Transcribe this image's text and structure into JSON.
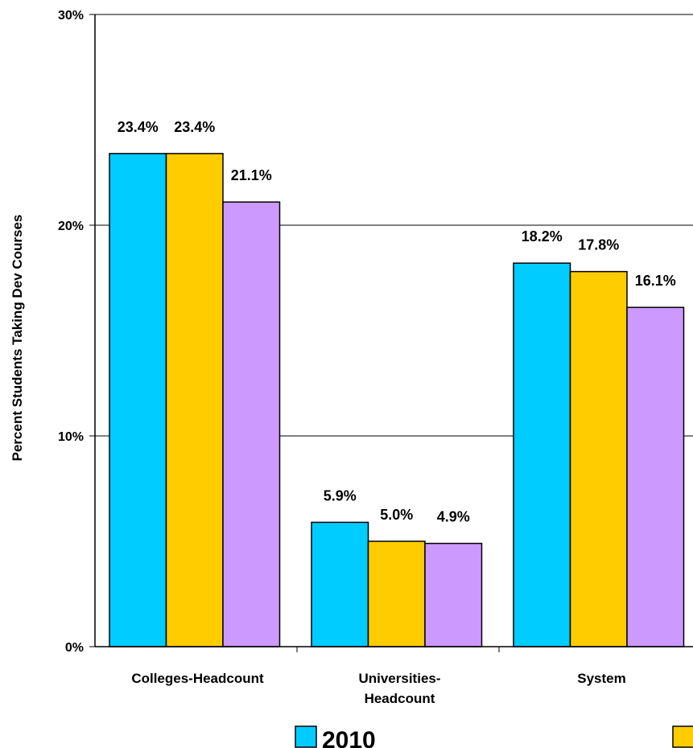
{
  "chart_data": {
    "type": "bar",
    "ylabel": "Percent Students Taking Dev Courses",
    "xlabel": "",
    "ylim": [
      0,
      30
    ],
    "y_ticks": [
      "0%",
      "10%",
      "20%",
      "30%"
    ],
    "y_tick_values": [
      0,
      10,
      20,
      30
    ],
    "grid": true,
    "legend_position": "bottom",
    "categories": [
      "Colleges-Headcount",
      "Universities-Headcount",
      "System"
    ],
    "category_display": [
      [
        "Colleges-Headcount"
      ],
      [
        "Universities-",
        "Headcount"
      ],
      [
        "System"
      ]
    ],
    "series": [
      {
        "name": "2010",
        "color": "#00ccff",
        "values": [
          23.4,
          5.9,
          18.2
        ],
        "labels": [
          "23.4%",
          "5.9%",
          "18.2%"
        ]
      },
      {
        "name": "",
        "color": "#ffcc00",
        "values": [
          23.4,
          5.0,
          17.8
        ],
        "labels": [
          "23.4%",
          "5.0%",
          "17.8%"
        ]
      },
      {
        "name": "",
        "color": "#cc99ff",
        "values": [
          21.1,
          4.9,
          16.1
        ],
        "labels": [
          "21.1%",
          "4.9%",
          "16.1%"
        ]
      }
    ]
  }
}
